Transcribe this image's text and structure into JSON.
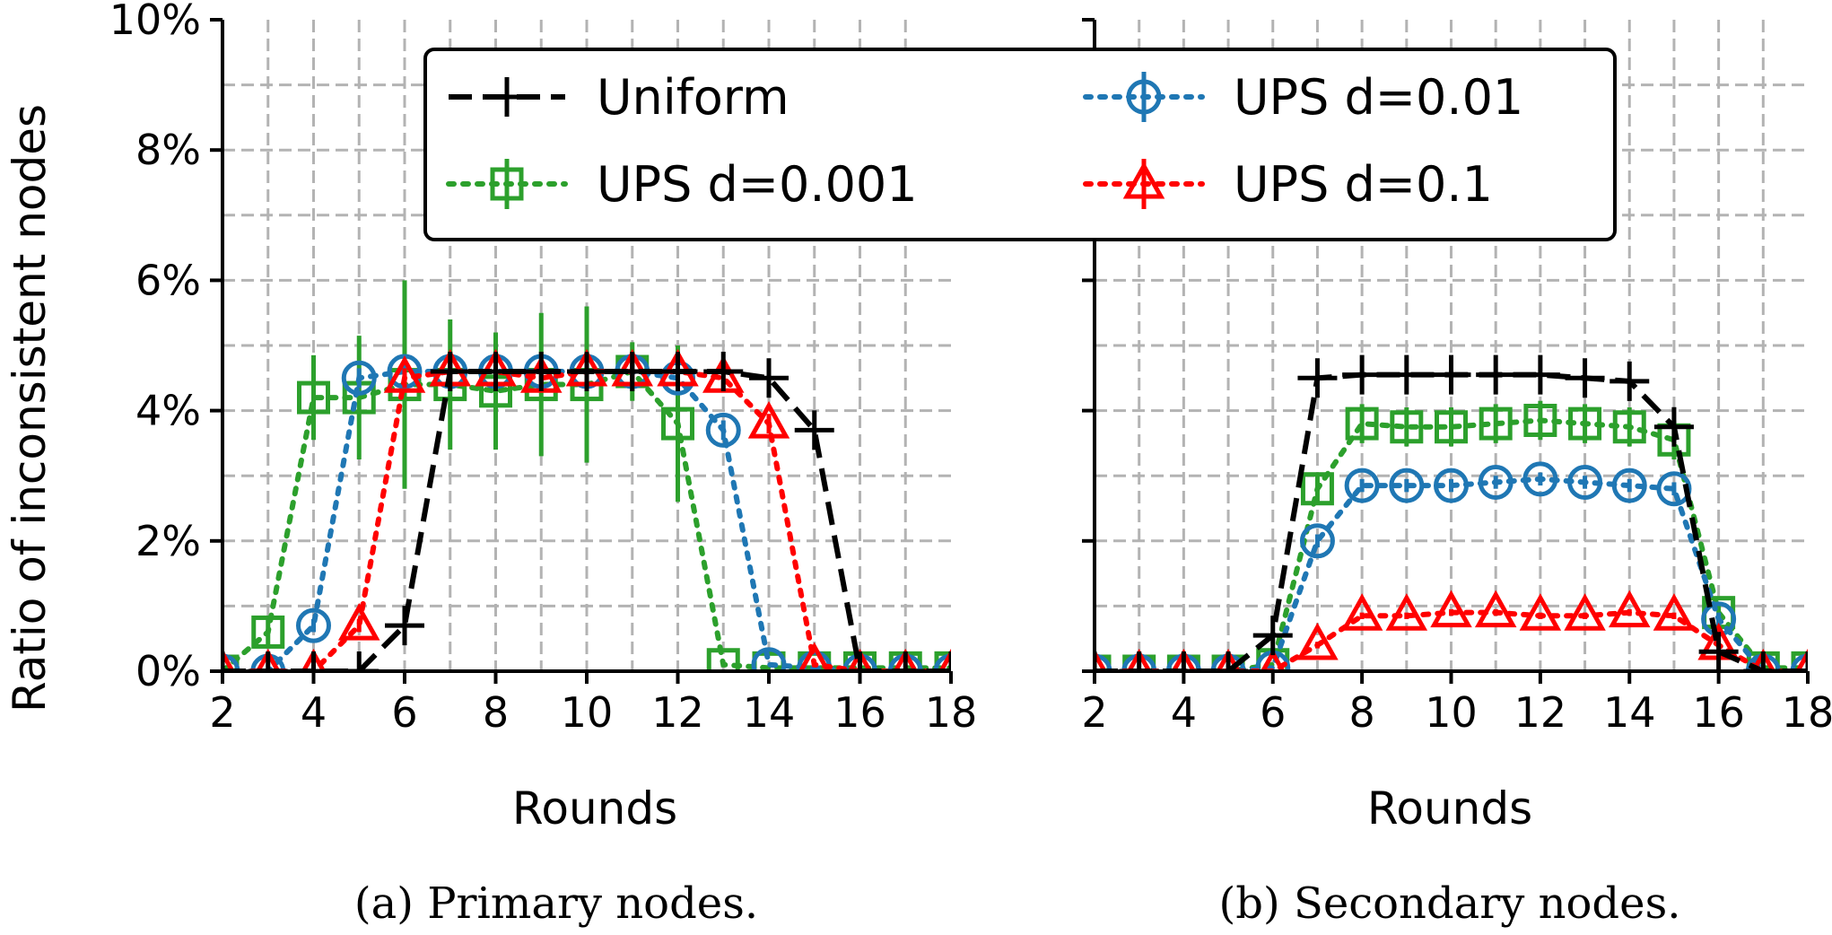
{
  "chart_data": [
    {
      "type": "line",
      "panel": "a",
      "caption": "(a) Primary nodes.",
      "xlabel": "Rounds",
      "ylabel": "Ratio of inconsistent nodes",
      "xlim": [
        2,
        18
      ],
      "ylim": [
        0,
        10
      ],
      "xticks": [
        "2",
        "4",
        "6",
        "8",
        "10",
        "12",
        "14",
        "16",
        "18"
      ],
      "yticks": [
        "0%",
        "2%",
        "4%",
        "6%",
        "8%",
        "10%"
      ],
      "grid": true,
      "x": [
        2,
        3,
        4,
        5,
        6,
        7,
        8,
        9,
        10,
        11,
        12,
        13,
        14,
        15,
        16,
        17,
        18
      ],
      "series": [
        {
          "name": "Uniform",
          "values": [
            0.0,
            0.0,
            0.0,
            0.0,
            0.7,
            4.6,
            4.6,
            4.6,
            4.6,
            4.6,
            4.6,
            4.6,
            4.5,
            3.7,
            0.0,
            0.0,
            0.0
          ]
        },
        {
          "name": "UPS d=0.001",
          "values": [
            0.0,
            0.6,
            4.2,
            4.2,
            4.4,
            4.4,
            4.3,
            4.4,
            4.4,
            4.6,
            3.8,
            0.1,
            0.05,
            0.05,
            0.05,
            0.05,
            0.05
          ],
          "errors": [
            0,
            0.25,
            0.65,
            0.95,
            1.6,
            1.0,
            0.9,
            1.1,
            1.2,
            0.45,
            1.2,
            0,
            0,
            0,
            0,
            0,
            0
          ]
        },
        {
          "name": "UPS d=0.01",
          "values": [
            0.0,
            0.0,
            0.7,
            4.5,
            4.6,
            4.6,
            4.6,
            4.6,
            4.6,
            4.6,
            4.5,
            3.7,
            0.1,
            0.05,
            0.0,
            0.0,
            0.0
          ],
          "errors": [
            0,
            0,
            0.1,
            0.15,
            0.15,
            0.15,
            0.15,
            0.15,
            0.15,
            0.15,
            0.15,
            0.15,
            0,
            0,
            0,
            0,
            0
          ]
        },
        {
          "name": "UPS d=0.1",
          "values": [
            0.0,
            0.0,
            0.0,
            0.7,
            4.5,
            4.6,
            4.6,
            4.5,
            4.6,
            4.6,
            4.6,
            4.5,
            3.8,
            0.1,
            0.0,
            0.0,
            0.0
          ],
          "errors": [
            0,
            0,
            0,
            0.1,
            0.15,
            0.15,
            0.15,
            0.15,
            0.15,
            0.15,
            0.15,
            0.15,
            0.15,
            0,
            0,
            0,
            0
          ]
        }
      ]
    },
    {
      "type": "line",
      "panel": "b",
      "caption": "(b) Secondary nodes.",
      "xlabel": "Rounds",
      "ylabel": "",
      "xlim": [
        2,
        18
      ],
      "ylim": [
        0,
        10
      ],
      "xticks": [
        "2",
        "4",
        "6",
        "8",
        "10",
        "12",
        "14",
        "16",
        "18"
      ],
      "yticks": [],
      "grid": true,
      "x": [
        2,
        3,
        4,
        5,
        6,
        7,
        8,
        9,
        10,
        11,
        12,
        13,
        14,
        15,
        16,
        17,
        18
      ],
      "series": [
        {
          "name": "Uniform",
          "values": [
            0.0,
            0.0,
            0.0,
            0.0,
            0.55,
            4.5,
            4.55,
            4.55,
            4.55,
            4.55,
            4.55,
            4.5,
            4.45,
            3.75,
            0.3,
            0.0,
            0.0
          ]
        },
        {
          "name": "UPS d=0.001",
          "values": [
            0.0,
            0.0,
            0.0,
            0.0,
            0.1,
            2.8,
            3.8,
            3.75,
            3.75,
            3.8,
            3.85,
            3.8,
            3.75,
            3.55,
            0.9,
            0.05,
            0.05
          ],
          "errors": [
            0,
            0,
            0,
            0,
            0,
            0.25,
            0.3,
            0.3,
            0.3,
            0.3,
            0.3,
            0.3,
            0.3,
            0.3,
            0.15,
            0,
            0
          ]
        },
        {
          "name": "UPS d=0.01",
          "values": [
            0.0,
            0.0,
            0.0,
            0.0,
            0.05,
            2.0,
            2.85,
            2.85,
            2.85,
            2.9,
            2.95,
            2.9,
            2.85,
            2.8,
            0.8,
            0.0,
            0.0
          ],
          "errors": [
            0,
            0,
            0,
            0,
            0,
            0.1,
            0.1,
            0.1,
            0.1,
            0.1,
            0.1,
            0.1,
            0.1,
            0.1,
            0.1,
            0,
            0
          ]
        },
        {
          "name": "UPS d=0.1",
          "values": [
            0.0,
            0.0,
            0.0,
            0.0,
            0.0,
            0.4,
            0.85,
            0.85,
            0.9,
            0.9,
            0.85,
            0.85,
            0.9,
            0.85,
            0.4,
            0.0,
            0.0
          ],
          "errors": [
            0,
            0,
            0,
            0,
            0,
            0.05,
            0.05,
            0.05,
            0.05,
            0.05,
            0.05,
            0.05,
            0.05,
            0.05,
            0.05,
            0,
            0
          ]
        }
      ]
    }
  ],
  "legend": {
    "placement": "top-center",
    "entries": [
      {
        "name": "Uniform",
        "label": "Uniform",
        "color": "#000000",
        "marker": "plus",
        "dash": "dashed"
      },
      {
        "name": "UPS d=0.01",
        "label": "UPS d=0.01",
        "color": "#1f77b4",
        "marker": "circle",
        "dash": "dotted"
      },
      {
        "name": "UPS d=0.001",
        "label": "UPS d=0.001",
        "color": "#2ca02c",
        "marker": "square",
        "dash": "dotted"
      },
      {
        "name": "UPS d=0.1",
        "label": "UPS d=0.1",
        "color": "#ff0000",
        "marker": "triangle",
        "dash": "dotted"
      }
    ]
  }
}
